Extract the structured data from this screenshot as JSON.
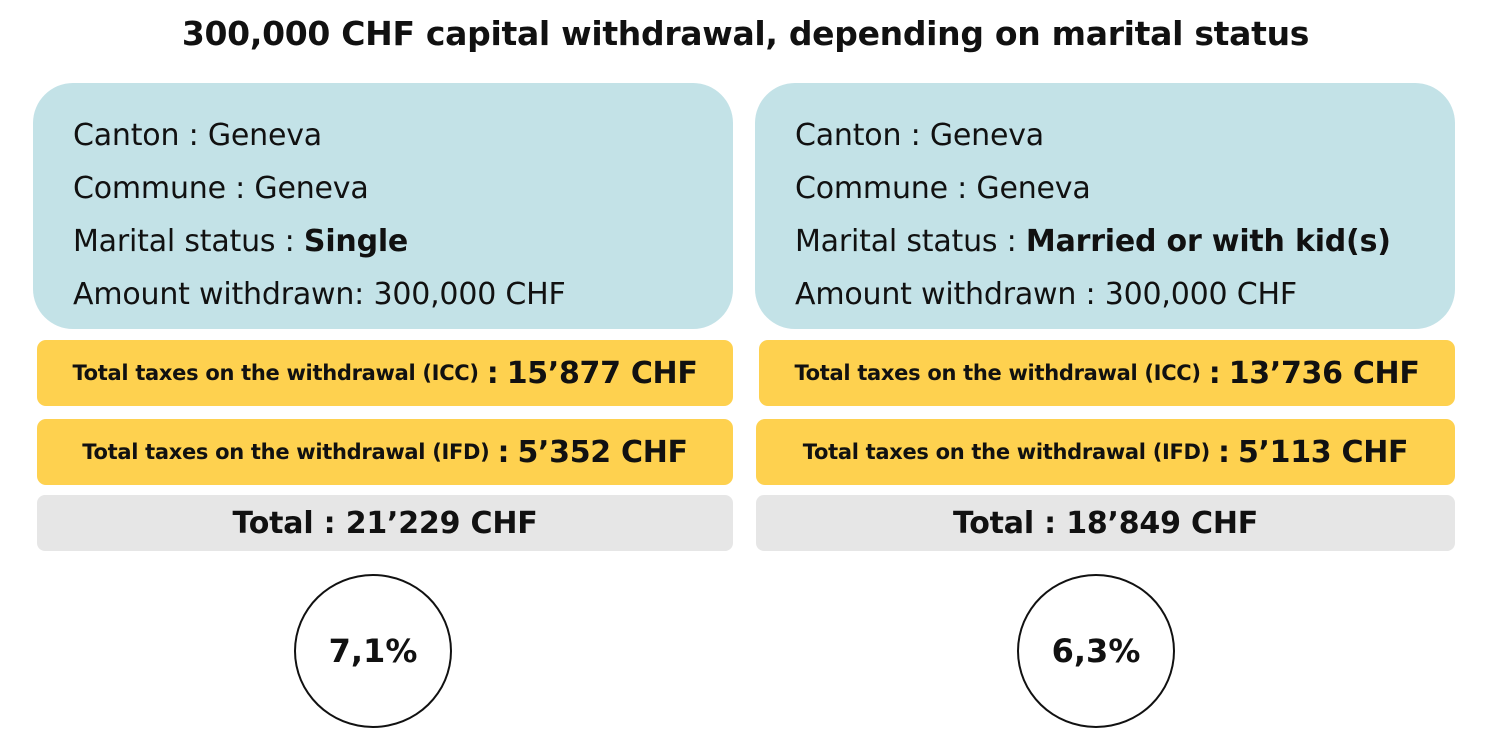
{
  "title": "300,000 CHF capital withdrawal, depending on marital status",
  "panels": [
    {
      "canton_label": "Canton : ",
      "canton_value": "Geneva",
      "commune_label": "Commune : ",
      "commune_value": "Geneva",
      "marital_label": "Marital status : ",
      "marital_value": "Single",
      "amount_label": "Amount withdrawn: ",
      "amount_value": "300,000 CHF",
      "icc_label": "Total taxes on the withdrawal (ICC)",
      "icc_value": "15’877 CHF",
      "ifd_label": "Total taxes on the withdrawal (IFD)",
      "ifd_value": "5’352 CHF",
      "total": "Total : 21’229 CHF",
      "rate": "7,1%"
    },
    {
      "canton_label": "Canton : ",
      "canton_value": "Geneva",
      "commune_label": "Commune : ",
      "commune_value": "Geneva",
      "marital_label": "Marital status : ",
      "marital_value": "Married or with kid(s)",
      "amount_label": "Amount withdrawn : ",
      "amount_value": "300,000 CHF",
      "icc_label": "Total taxes on the withdrawal (ICC)",
      "icc_value": "13’736 CHF",
      "ifd_label": "Total taxes on the withdrawal (IFD)",
      "ifd_value": "5’113 CHF",
      "total": "Total : 18’849 CHF",
      "rate": "6,3%"
    }
  ],
  "separator": ":",
  "colors": {
    "info_bg": "#c3e2e7",
    "tax_bg": "#fed14f",
    "total_bg": "#e6e6e6",
    "circle_border": "#111111"
  }
}
